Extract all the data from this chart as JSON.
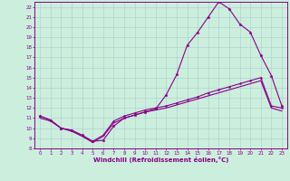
{
  "xlabel": "Windchill (Refroidissement éolien,°C)",
  "bg_color": "#cceedd",
  "line_color": "#880088",
  "xlim": [
    -0.5,
    23.5
  ],
  "ylim": [
    8,
    22.5
  ],
  "xticks": [
    0,
    1,
    2,
    3,
    4,
    5,
    6,
    7,
    8,
    9,
    10,
    11,
    12,
    13,
    14,
    15,
    16,
    17,
    18,
    19,
    20,
    21,
    22,
    23
  ],
  "yticks": [
    8,
    9,
    10,
    11,
    12,
    13,
    14,
    15,
    16,
    17,
    18,
    19,
    20,
    21,
    22
  ],
  "curve1_x": [
    0,
    1,
    2,
    3,
    4,
    5,
    6,
    7,
    8,
    9,
    10,
    11,
    12,
    13,
    14,
    15,
    16,
    17,
    18,
    19,
    20,
    21,
    22,
    23
  ],
  "curve1_y": [
    11.2,
    10.8,
    10.0,
    9.8,
    9.3,
    8.7,
    8.8,
    10.2,
    11.0,
    11.3,
    11.6,
    11.9,
    13.3,
    15.3,
    18.2,
    19.5,
    21.0,
    22.5,
    21.8,
    20.3,
    19.5,
    17.2,
    15.2,
    12.2
  ],
  "curve2_x": [
    0,
    1,
    2,
    3,
    4,
    5,
    6,
    7,
    8,
    9,
    10,
    11,
    12,
    13,
    14,
    15,
    16,
    17,
    18,
    19,
    20,
    21,
    22,
    23
  ],
  "curve2_y": [
    11.2,
    10.8,
    10.0,
    9.8,
    9.3,
    8.7,
    9.3,
    10.7,
    11.2,
    11.5,
    11.8,
    12.0,
    12.2,
    12.5,
    12.8,
    13.1,
    13.5,
    13.8,
    14.1,
    14.4,
    14.7,
    15.0,
    12.2,
    12.0
  ],
  "curve3_x": [
    0,
    1,
    2,
    3,
    4,
    5,
    6,
    7,
    8,
    9,
    10,
    11,
    12,
    13,
    14,
    15,
    16,
    17,
    18,
    19,
    20,
    21,
    22,
    23
  ],
  "curve3_y": [
    11.0,
    10.7,
    10.0,
    9.7,
    9.2,
    8.6,
    9.2,
    10.5,
    11.0,
    11.3,
    11.6,
    11.8,
    12.0,
    12.3,
    12.6,
    12.9,
    13.2,
    13.5,
    13.8,
    14.1,
    14.4,
    14.7,
    12.0,
    11.7
  ]
}
